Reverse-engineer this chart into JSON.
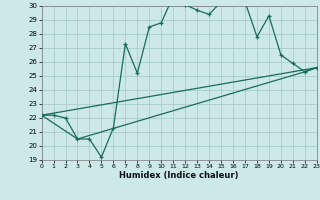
{
  "xlabel": "Humidex (Indice chaleur)",
  "xlim": [
    0,
    23
  ],
  "ylim": [
    19,
    30
  ],
  "xticks": [
    0,
    1,
    2,
    3,
    4,
    5,
    6,
    7,
    8,
    9,
    10,
    11,
    12,
    13,
    14,
    15,
    16,
    17,
    18,
    19,
    20,
    21,
    22,
    23
  ],
  "yticks": [
    19,
    20,
    21,
    22,
    23,
    24,
    25,
    26,
    27,
    28,
    29,
    30
  ],
  "background_color": "#cce8e8",
  "line_color": "#1a6b5a",
  "grid_color": "#aacccc",
  "lines": [
    {
      "x": [
        0,
        1,
        2,
        3,
        4,
        5,
        6,
        7,
        8,
        9,
        10,
        11,
        12,
        13,
        14,
        15,
        16,
        17,
        18,
        19,
        20,
        21,
        22,
        23
      ],
      "y": [
        22.2,
        22.2,
        22.0,
        20.5,
        20.5,
        19.2,
        21.3,
        27.3,
        25.2,
        28.5,
        28.8,
        30.7,
        30.1,
        29.7,
        29.4,
        30.3,
        30.2,
        30.3,
        27.8,
        29.3,
        26.5,
        25.9,
        25.3,
        25.6
      ],
      "has_markers": true
    },
    {
      "x": [
        0,
        3,
        22,
        23
      ],
      "y": [
        22.2,
        20.5,
        25.3,
        25.6
      ],
      "has_markers": false
    },
    {
      "x": [
        0,
        23
      ],
      "y": [
        22.2,
        25.6
      ],
      "has_markers": false
    }
  ]
}
